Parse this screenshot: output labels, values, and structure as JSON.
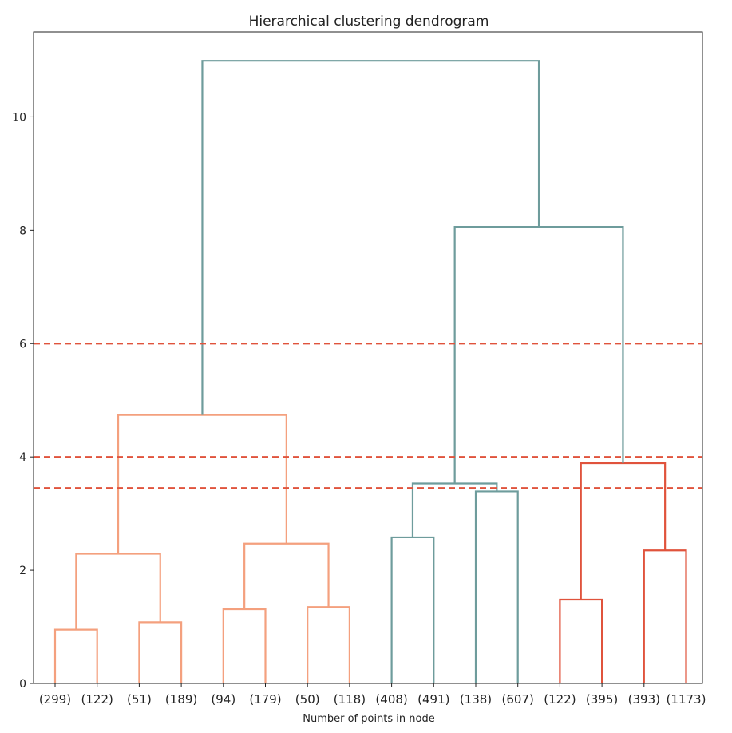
{
  "chart_data": {
    "type": "dendrogram",
    "title": "Hierarchical clustering dendrogram",
    "xlabel": "Number of points in node",
    "ylabel": "",
    "ylim": [
      0,
      11.5
    ],
    "yticks": [
      0,
      2,
      4,
      6,
      8,
      10
    ],
    "grid": false,
    "leaves": [
      "(299)",
      "(122)",
      "(51)",
      "(189)",
      "(94)",
      "(179)",
      "(50)",
      "(118)",
      "(408)",
      "(491)",
      "(138)",
      "(607)",
      "(122)",
      "(395)",
      "(393)",
      "(1173)"
    ],
    "colors": {
      "cluster_1": "#f4a07e",
      "cluster_2": "#6e9c9c",
      "cluster_3": "#e0533c",
      "above_threshold": "#6e9c9c",
      "threshold_line": "#e0533c"
    },
    "merges": [
      {
        "left": 0,
        "right": 1,
        "height": 0.95,
        "color": "cluster_1"
      },
      {
        "left": 2,
        "right": 3,
        "height": 1.08,
        "color": "cluster_1"
      },
      {
        "left": 4,
        "right": 5,
        "height": 1.31,
        "color": "cluster_1"
      },
      {
        "left": 6,
        "right": 7,
        "height": 1.35,
        "color": "cluster_1"
      },
      {
        "left": 8,
        "right": 9,
        "height": 2.58,
        "color": "cluster_2"
      },
      {
        "left": 10,
        "right": 11,
        "height": 3.39,
        "color": "cluster_2"
      },
      {
        "left": 12,
        "right": 13,
        "height": 1.48,
        "color": "cluster_3"
      },
      {
        "left": 14,
        "right": 15,
        "height": 2.35,
        "color": "cluster_3"
      },
      {
        "left": 16,
        "right": 17,
        "height": 2.29,
        "color": "cluster_1"
      },
      {
        "left": 18,
        "right": 19,
        "height": 2.47,
        "color": "cluster_1"
      },
      {
        "left": 20,
        "right": 21,
        "height": 3.53,
        "color": "cluster_2"
      },
      {
        "left": 22,
        "right": 23,
        "height": 3.89,
        "color": "cluster_3"
      },
      {
        "left": 24,
        "right": 25,
        "height": 4.74,
        "color": "cluster_1"
      },
      {
        "left": 26,
        "right": 27,
        "height": 8.06,
        "color": "above_threshold"
      },
      {
        "left": 28,
        "right": 29,
        "height": 10.99,
        "color": "above_threshold"
      }
    ],
    "threshold_lines": [
      6.0,
      4.0,
      3.45
    ]
  }
}
